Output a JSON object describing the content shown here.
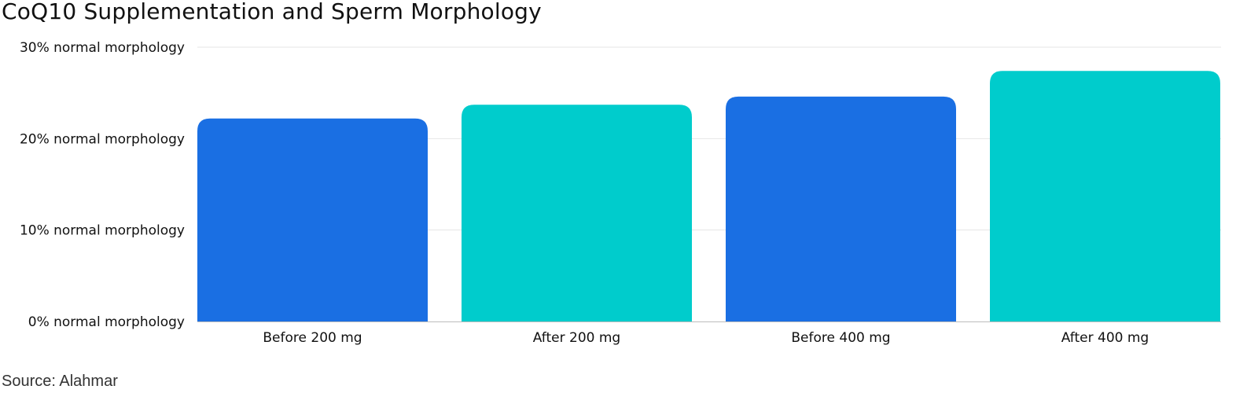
{
  "chart_data": {
    "type": "bar",
    "title": "CoQ10 Supplementation and Sperm Morphology",
    "categories": [
      "Before 200 mg",
      "After 200 mg",
      "Before 400 mg",
      "After 400 mg"
    ],
    "values": [
      22.2,
      23.7,
      24.6,
      27.4
    ],
    "bar_colors": [
      "#1a6fe3",
      "#00cccc",
      "#1a6fe3",
      "#00cccc"
    ],
    "ylim": [
      0,
      30
    ],
    "yticks": [
      0,
      10,
      20,
      30
    ],
    "ytick_labels": [
      "0% normal morphology",
      "10% normal morphology",
      "20% normal morphology",
      "30% normal morphology"
    ],
    "xlabel": "",
    "ylabel": "",
    "grid": true,
    "legend": "none"
  },
  "source": "Source: Alahmar"
}
